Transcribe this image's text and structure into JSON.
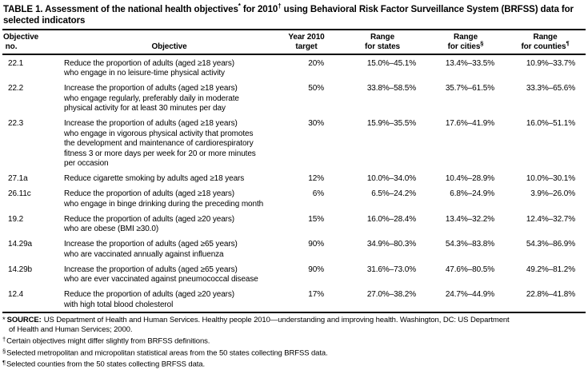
{
  "page": {
    "background_color": "#ffffff",
    "text_color": "#000000",
    "rule_color": "#000000"
  },
  "table": {
    "title": {
      "p1": "TABLE 1. Assessment of the national health objectives",
      "s1": "*",
      "p2": " for 2010",
      "s2": "†",
      "p3": " using Behavioral Risk Factor Surveillance System (BRFSS) data for selected indicators"
    },
    "columns": [
      {
        "id": "objective-no",
        "lines": [
          "Objective",
          " no."
        ],
        "sup": ""
      },
      {
        "id": "objective",
        "lines": [
          "Objective"
        ],
        "sup": ""
      },
      {
        "id": "year-2010-target",
        "lines": [
          "Year 2010",
          "target"
        ],
        "sup": ""
      },
      {
        "id": "range-states",
        "lines": [
          "Range",
          "for states"
        ],
        "sup": ""
      },
      {
        "id": "range-cities",
        "lines": [
          "Range",
          "for cities"
        ],
        "sup": "§"
      },
      {
        "id": "range-counties",
        "lines": [
          "Range",
          "for counties"
        ],
        "sup": "¶"
      }
    ],
    "rows": [
      {
        "no": "22.1",
        "objective": "Reduce the proportion of adults (aged ≥18 years)\nwho engage in no leisure-time physical activity",
        "target": "20%",
        "range_states": "15.0%–45.1%",
        "range_cities": "13.4%–33.5%",
        "range_counties": "10.9%–33.7%"
      },
      {
        "no": "22.2",
        "objective": "Increase the proportion of adults (aged ≥18 years)\nwho engage regularly, preferably daily in moderate\nphysical activity for at least 30 minutes per day",
        "target": "50%",
        "range_states": "33.8%–58.5%",
        "range_cities": "35.7%–61.5%",
        "range_counties": "33.3%–65.6%"
      },
      {
        "no": "22.3",
        "objective": "Increase the proportion of adults (aged ≥18 years)\nwho engage in vigorous physical activity that promotes\nthe development and maintenance of cardiorespiratory\nfitness 3 or more days per week for 20 or more minutes\nper occasion",
        "target": "30%",
        "range_states": "15.9%–35.5%",
        "range_cities": "17.6%–41.9%",
        "range_counties": "16.0%–51.1%"
      },
      {
        "no": "27.1a",
        "objective": "Reduce cigarette smoking by adults aged ≥18 years",
        "target": "12%",
        "range_states": "10.0%–34.0%",
        "range_cities": "10.4%–28.9%",
        "range_counties": "10.0%–30.1%"
      },
      {
        "no": "26.11c",
        "objective": "Reduce the proportion of adults (aged ≥18 years)\nwho engage in binge drinking during the preceding month",
        "target": "6%",
        "range_states": "6.5%–24.2%",
        "range_cities": "6.8%–24.9%",
        "range_counties": "3.9%–26.0%"
      },
      {
        "no": "19.2",
        "objective": "Reduce the proportion of adults (aged ≥20 years)\nwho are obese (BMI ≥30.0)",
        "target": "15%",
        "range_states": "16.0%–28.4%",
        "range_cities": "13.4%–32.2%",
        "range_counties": "12.4%–32.7%"
      },
      {
        "no": "14.29a",
        "objective": "Increase the proportion of adults (aged ≥65 years)\nwho are vaccinated annually against influenza",
        "target": "90%",
        "range_states": "34.9%–80.3%",
        "range_cities": "54.3%–83.8%",
        "range_counties": "54.3%–86.9%"
      },
      {
        "no": "14.29b",
        "objective": "Increase the proportion of adults (aged ≥65 years)\nwho are ever vaccinated against pneumococcal disease",
        "target": "90%",
        "range_states": "31.6%–73.0%",
        "range_cities": "47.6%–80.5%",
        "range_counties": "49.2%–81.2%"
      },
      {
        "no": "12.4",
        "objective": "Reduce the proportion of adults (aged ≥20 years)\nwith high total blood cholesterol",
        "target": "17%",
        "range_states": "27.0%–38.2%",
        "range_cities": "24.7%–44.9%",
        "range_counties": "22.8%–41.8%"
      }
    ]
  },
  "footnotes": [
    {
      "marker": "*",
      "superscript": false,
      "bold_label": "SOURCE:",
      "text": "US Department of Health and Human Services. Healthy people 2010—understanding and improving health. Washington, DC: US Department\nof Health and Human Services; 2000."
    },
    {
      "marker": "†",
      "superscript": true,
      "bold_label": "",
      "text": "Certain objectives might differ slightly from BRFSS definitions."
    },
    {
      "marker": "§",
      "superscript": true,
      "bold_label": "",
      "text": "Selected metropolitan and micropolitan statistical areas from the 50 states collecting BRFSS data."
    },
    {
      "marker": "¶",
      "superscript": true,
      "bold_label": "",
      "text": "Selected counties from the 50 states collecting BRFSS data."
    }
  ]
}
